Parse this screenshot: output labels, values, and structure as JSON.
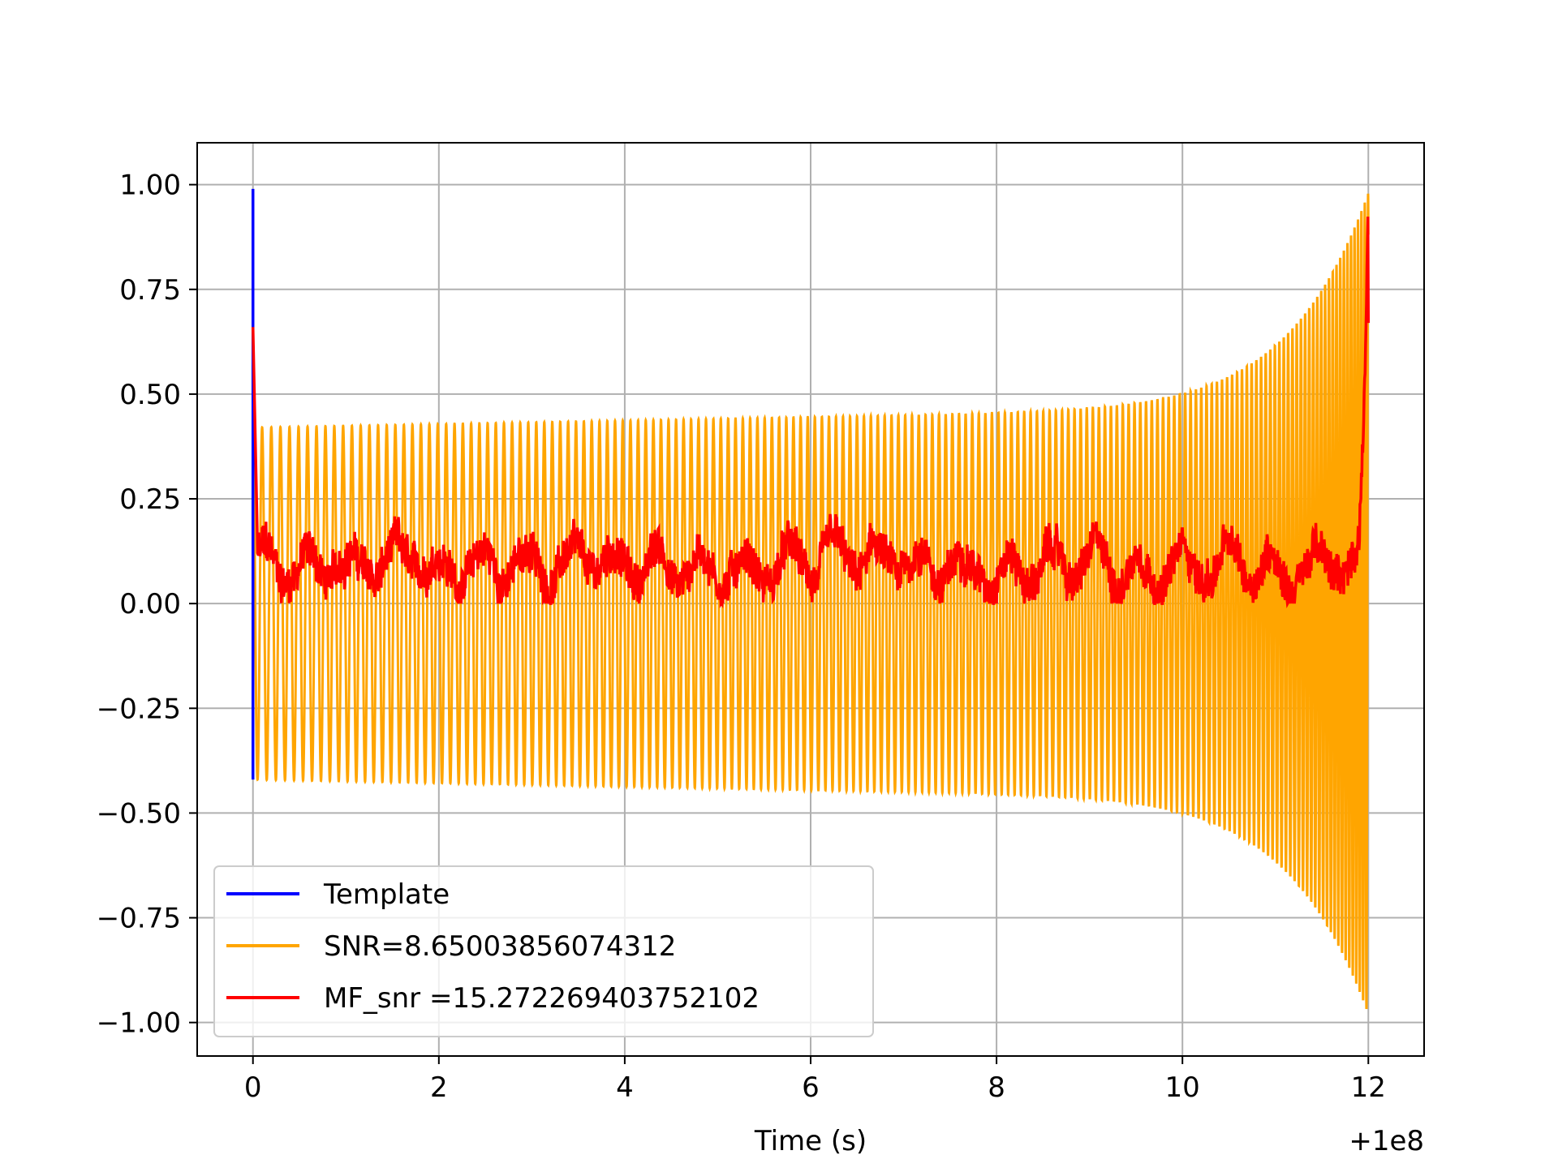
{
  "chart_data": {
    "type": "line",
    "title": "",
    "xlabel": "Time (s)",
    "ylabel": "",
    "x_offset_label": "+1e8",
    "xlim": [
      -0.6,
      12.6
    ],
    "ylim": [
      -1.08,
      1.1
    ],
    "xticks": [
      0,
      2,
      4,
      6,
      8,
      10,
      12
    ],
    "xtick_labels": [
      "0",
      "2",
      "4",
      "6",
      "8",
      "10",
      "12"
    ],
    "yticks": [
      1.0,
      0.75,
      0.5,
      0.25,
      0.0,
      -0.25,
      -0.5,
      -0.75,
      -1.0
    ],
    "ytick_labels": [
      "1.00",
      "0.75",
      "0.50",
      "0.25",
      "0.00",
      "−0.25",
      "−0.50",
      "−0.75",
      "−1.00"
    ],
    "grid": true,
    "legend_position": "lower-left",
    "series": [
      {
        "name": "Template",
        "color": "#0000ff",
        "description_points": [
          [
            0.0,
            -0.32
          ],
          [
            0.0,
            0.99
          ],
          [
            0.0,
            -0.42
          ]
        ]
      },
      {
        "name": "SNR=8.65003856074312",
        "color": "#ffa500",
        "kind": "chirp",
        "t_start": 0.0,
        "t_end": 12.0,
        "amplitude_start": 0.42,
        "amplitude_mid": 0.47,
        "amplitude_end": 0.98,
        "cycles": 175
      },
      {
        "name": "MF_snr =15.272269403752102",
        "color": "#ff0000",
        "kind": "noisy",
        "t_start": 0.0,
        "t_end": 12.0,
        "start_value": 0.66,
        "baseline": 0.09,
        "baseline_range": [
          0.0,
          0.25
        ],
        "end_peak": 1.0
      }
    ]
  }
}
